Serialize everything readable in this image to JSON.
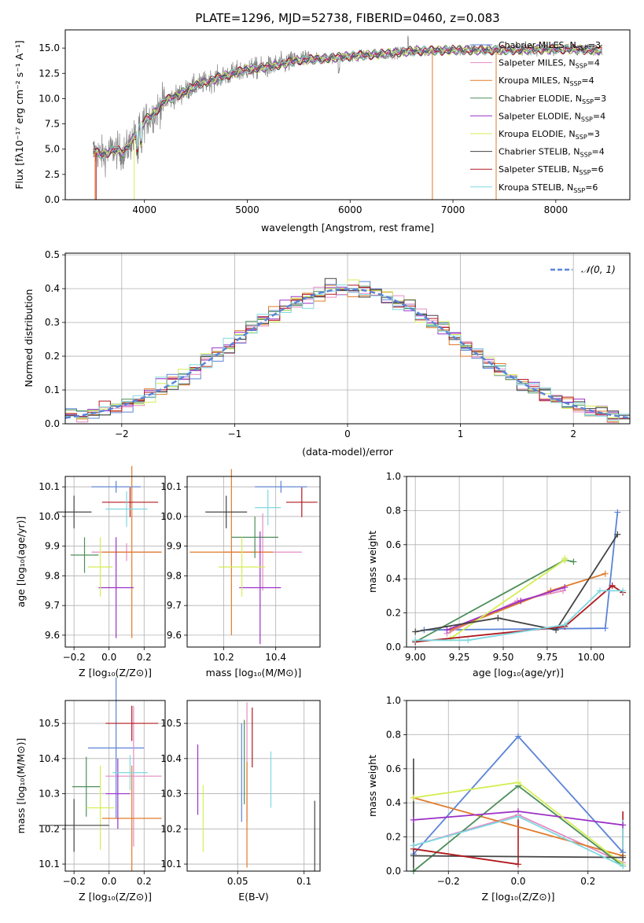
{
  "chart_data": [
    {
      "type": "line",
      "id": "spectrum",
      "title": "PLATE=1296, MJD=52738, FIBERID=0460, z=0.083",
      "xlabel": "wavelength [Angstrom, rest frame]",
      "ylabel": "Flux [fλ10⁻¹⁷ erg cm⁻² s⁻¹ A⁻¹]",
      "xlim": [
        3230,
        8720
      ],
      "ylim": [
        0,
        16.8
      ],
      "xticks": [
        4000,
        5000,
        6000,
        7000,
        8000
      ],
      "yticks": [
        0.0,
        2.5,
        5.0,
        7.5,
        10.0,
        12.5,
        15.0
      ],
      "legend_position": "right",
      "continuum": {
        "x": [
          3500,
          3600,
          3700,
          3800,
          3900,
          4000,
          4100,
          4200,
          4300,
          4500,
          4700,
          5000,
          5200,
          5500,
          5800,
          6000,
          6300,
          6600,
          7000,
          7500,
          8000,
          8500
        ],
        "y": [
          4.8,
          4.4,
          5.0,
          4.6,
          6.2,
          7.8,
          8.6,
          9.8,
          10.2,
          11.3,
          12.0,
          12.9,
          13.1,
          13.8,
          14.0,
          14.2,
          14.4,
          14.7,
          14.8,
          14.8,
          14.9,
          14.8
        ]
      },
      "series": [
        {
          "name": "Chabrier MILES, N_SSP=3",
          "label_text": "Chabrier MILES, N",
          "label_sub": "SSP",
          "label_tail": "=3",
          "color": "#5b84d6"
        },
        {
          "name": "Salpeter MILES, N_SSP=4",
          "label_text": "Salpeter MILES, N",
          "label_sub": "SSP",
          "label_tail": "=4",
          "color": "#e38cc4"
        },
        {
          "name": "Kroupa MILES, N_SSP=4",
          "label_text": "Kroupa MILES, N",
          "label_sub": "SSP",
          "label_tail": "=4",
          "color": "#e07b2a"
        },
        {
          "name": "Chabrier ELODIE, N_SSP=3",
          "label_text": "Chabrier ELODIE, N",
          "label_sub": "SSP",
          "label_tail": "=3",
          "color": "#4d8f5a"
        },
        {
          "name": "Salpeter ELODIE, N_SSP=4",
          "label_text": "Salpeter ELODIE, N",
          "label_sub": "SSP",
          "label_tail": "=4",
          "color": "#9b30c6"
        },
        {
          "name": "Kroupa ELODIE, N_SSP=3",
          "label_text": "Kroupa ELODIE, N",
          "label_sub": "SSP",
          "label_tail": "=3",
          "color": "#d4ee55"
        },
        {
          "name": "Chabrier STELIB, N_SSP=4",
          "label_text": "Chabrier STELIB, N",
          "label_sub": "SSP",
          "label_tail": "=4",
          "color": "#444444"
        },
        {
          "name": "Salpeter STELIB, N_SSP=6",
          "label_text": "Salpeter STELIB, N",
          "label_sub": "SSP",
          "label_tail": "=6",
          "color": "#b0191e"
        },
        {
          "name": "Kroupa STELIB, N_SSP=6",
          "label_text": "Kroupa STELIB, N",
          "label_sub": "SSP",
          "label_tail": "=6",
          "color": "#7fd8e0"
        }
      ],
      "data_color": "#808080"
    },
    {
      "type": "bar",
      "id": "residuals",
      "xlabel": "(data-model)/error",
      "ylabel": "Normed distribution",
      "xlim": [
        -2.5,
        2.5
      ],
      "ylim": [
        0,
        0.505
      ],
      "xticks": [
        -2,
        -1,
        0,
        1,
        2
      ],
      "yticks": [
        0.0,
        0.1,
        0.2,
        0.3,
        0.4,
        0.5
      ],
      "grid": true,
      "legend_position": "top-right",
      "legend_label": "𝒩(0, 1)",
      "normal_color": "#5b84d6",
      "bin_width": 0.1
    },
    {
      "type": "scatter",
      "id": "age-vs-Z",
      "xlabel": "Z [log₁₀(Z/Z⊙)]",
      "ylabel": "age  [log₁₀(age/yr)]",
      "xlim": [
        -0.25,
        0.32
      ],
      "ylim": [
        9.56,
        10.135
      ],
      "xticks": [
        -0.2,
        0.0,
        0.2
      ],
      "yticks": [
        9.6,
        9.7,
        9.8,
        9.9,
        10.0,
        10.1
      ],
      "grid": true,
      "points": [
        {
          "x": 0.04,
          "y": 10.1,
          "xerr": 0.14,
          "yerr": 0.02,
          "color": "#5b84d6"
        },
        {
          "x": 0.1,
          "y": 9.88,
          "xerr": 0.2,
          "yerr": 0.03,
          "color": "#e38cc4"
        },
        {
          "x": 0.13,
          "y": 9.88,
          "xerr": 0.17,
          "yerr": 0.29,
          "color": "#e07b2a"
        },
        {
          "x": -0.14,
          "y": 9.87,
          "xerr": 0.08,
          "yerr": 0.06,
          "color": "#4d8f5a"
        },
        {
          "x": 0.04,
          "y": 9.76,
          "xerr": 0.1,
          "yerr": 0.17,
          "color": "#9b30c6"
        },
        {
          "x": -0.05,
          "y": 9.83,
          "xerr": 0.07,
          "yerr": 0.1,
          "color": "#d4ee55"
        },
        {
          "x": -0.2,
          "y": 10.015,
          "xerr": 0.1,
          "yerr": 0.055,
          "color": "#444444"
        },
        {
          "x": 0.12,
          "y": 10.048,
          "xerr": 0.16,
          "yerr": 0.05,
          "color": "#b0191e"
        },
        {
          "x": 0.1,
          "y": 10.025,
          "xerr": 0.12,
          "yerr": 0.06,
          "color": "#7fd8e0"
        }
      ]
    },
    {
      "type": "scatter",
      "id": "age-vs-mass",
      "xlabel": "mass [log₁₀(M/M⊙)]",
      "ylabel": "",
      "xlim": [
        10.06,
        10.57
      ],
      "ylim": [
        9.56,
        10.135
      ],
      "xticks": [
        10.2,
        10.4
      ],
      "yticks": [
        9.6,
        9.7,
        9.8,
        9.9,
        10.0,
        10.1
      ],
      "grid": true,
      "points": [
        {
          "x": 10.42,
          "y": 10.1,
          "xerr": 0.1,
          "yerr": 0.02,
          "color": "#5b84d6"
        },
        {
          "x": 10.35,
          "y": 9.88,
          "xerr": 0.15,
          "yerr": 0.13,
          "color": "#e38cc4"
        },
        {
          "x": 10.23,
          "y": 9.88,
          "xerr": 0.16,
          "yerr": 0.28,
          "color": "#e07b2a"
        },
        {
          "x": 10.32,
          "y": 9.93,
          "xerr": 0.09,
          "yerr": 0.07,
          "color": "#4d8f5a"
        },
        {
          "x": 10.34,
          "y": 9.76,
          "xerr": 0.08,
          "yerr": 0.19,
          "color": "#9b30c6"
        },
        {
          "x": 10.27,
          "y": 9.83,
          "xerr": 0.09,
          "yerr": 0.1,
          "color": "#d4ee55"
        },
        {
          "x": 10.21,
          "y": 10.015,
          "xerr": 0.08,
          "yerr": 0.055,
          "color": "#444444"
        },
        {
          "x": 10.5,
          "y": 10.048,
          "xerr": 0.06,
          "yerr": 0.05,
          "color": "#b0191e"
        },
        {
          "x": 10.37,
          "y": 10.03,
          "xerr": 0.05,
          "yerr": 0.06,
          "color": "#7fd8e0"
        }
      ]
    },
    {
      "type": "line",
      "id": "mass-weight-vs-age",
      "xlabel": "age  [log₁₀(age/yr)]",
      "ylabel": "mass weight",
      "xlim": [
        8.95,
        10.22
      ],
      "ylim": [
        0,
        1.0
      ],
      "xticks": [
        9.0,
        9.25,
        9.5,
        9.75,
        10.0
      ],
      "xtick_labels": [
        "9.00",
        "9.25",
        "9.50",
        "9.75",
        "10.00"
      ],
      "yticks": [
        0.0,
        0.2,
        0.4,
        0.6,
        0.8,
        1.0
      ],
      "grid": true,
      "series": [
        {
          "color": "#5b84d6",
          "x": [
            9.05,
            10.08,
            10.15
          ],
          "y": [
            0.1,
            0.11,
            0.79
          ]
        },
        {
          "color": "#e38cc4",
          "x": [
            9.18,
            9.58,
            9.84
          ],
          "y": [
            0.08,
            0.27,
            0.33
          ]
        },
        {
          "color": "#e07b2a",
          "x": [
            9.2,
            9.77,
            10.08
          ],
          "y": [
            0.1,
            0.33,
            0.43
          ]
        },
        {
          "color": "#4d8f5a",
          "x": [
            9.0,
            9.85,
            9.9
          ],
          "y": [
            0.03,
            0.51,
            0.5
          ]
        },
        {
          "color": "#9b30c6",
          "x": [
            9.18,
            9.6,
            9.85
          ],
          "y": [
            0.1,
            0.27,
            0.35
          ]
        },
        {
          "color": "#d4ee55",
          "x": [
            9.2,
            9.85,
            9.85
          ],
          "y": [
            0.05,
            0.51,
            0.52
          ]
        },
        {
          "color": "#444444",
          "x": [
            9.0,
            9.47,
            9.8,
            10.15
          ],
          "y": [
            0.09,
            0.17,
            0.1,
            0.66
          ]
        },
        {
          "color": "#b0191e",
          "x": [
            9.0,
            9.85,
            10.12,
            10.18
          ],
          "y": [
            0.03,
            0.12,
            0.36,
            0.32
          ]
        },
        {
          "color": "#7fd8e0",
          "x": [
            9.0,
            9.3,
            9.85,
            10.05,
            10.18
          ],
          "y": [
            0.04,
            0.04,
            0.13,
            0.33,
            0.33
          ]
        }
      ]
    },
    {
      "type": "scatter",
      "id": "mass-vs-Z",
      "xlabel": "Z [log₁₀(Z/Z⊙)]",
      "ylabel": "mass [log₁₀(M/M⊙)]",
      "xlim": [
        -0.25,
        0.32
      ],
      "ylim": [
        10.08,
        10.565
      ],
      "xticks": [
        -0.2,
        0.0,
        0.2
      ],
      "yticks": [
        10.1,
        10.2,
        10.3,
        10.4,
        10.5
      ],
      "grid": true,
      "points": [
        {
          "x": 0.04,
          "y": 10.43,
          "xerr": 0.16,
          "yerr": 0.2,
          "color": "#5b84d6"
        },
        {
          "x": 0.14,
          "y": 10.35,
          "xerr": 0.16,
          "yerr": 0.2,
          "color": "#e38cc4"
        },
        {
          "x": 0.13,
          "y": 10.23,
          "xerr": 0.17,
          "yerr": 0.15,
          "color": "#e07b2a"
        },
        {
          "x": -0.13,
          "y": 10.32,
          "xerr": 0.08,
          "yerr": 0.085,
          "color": "#4d8f5a"
        },
        {
          "x": 0.05,
          "y": 10.3,
          "xerr": 0.07,
          "yerr": 0.1,
          "color": "#9b30c6"
        },
        {
          "x": -0.05,
          "y": 10.26,
          "xerr": 0.08,
          "yerr": 0.12,
          "color": "#d4ee55"
        },
        {
          "x": -0.2,
          "y": 10.21,
          "xerr": 0.2,
          "yerr": 0.075,
          "color": "#444444"
        },
        {
          "x": 0.13,
          "y": 10.5,
          "xerr": 0.15,
          "yerr": 0.05,
          "color": "#b0191e"
        },
        {
          "x": 0.12,
          "y": 10.36,
          "xerr": 0.1,
          "yerr": 0.05,
          "color": "#7fd8e0"
        }
      ]
    },
    {
      "type": "scatter",
      "id": "mass-vs-EBV",
      "xlabel": "E(B-V)",
      "ylabel": "",
      "xlim": [
        0.012,
        0.112
      ],
      "ylim": [
        10.08,
        10.565
      ],
      "xticks": [
        0.05,
        0.1
      ],
      "yticks": [
        10.1,
        10.2,
        10.3,
        10.4,
        10.5
      ],
      "grid": true,
      "points": [
        {
          "x": 0.053,
          "y": 10.36,
          "xerr": 0,
          "yerr": 0.14,
          "color": "#5b84d6"
        },
        {
          "x": 0.057,
          "y": 10.39,
          "xerr": 0,
          "yerr": 0.17,
          "color": "#e38cc4"
        },
        {
          "x": 0.057,
          "y": 10.24,
          "xerr": 0,
          "yerr": 0.15,
          "color": "#e07b2a"
        },
        {
          "x": 0.055,
          "y": 10.39,
          "xerr": 0,
          "yerr": 0.12,
          "color": "#4d8f5a"
        },
        {
          "x": 0.02,
          "y": 10.34,
          "xerr": 0,
          "yerr": 0.1,
          "color": "#9b30c6"
        },
        {
          "x": 0.024,
          "y": 10.23,
          "xerr": 0,
          "yerr": 0.095,
          "color": "#d4ee55"
        },
        {
          "x": 0.108,
          "y": 10.18,
          "xerr": 0,
          "yerr": 0.1,
          "color": "#444444"
        },
        {
          "x": 0.061,
          "y": 10.46,
          "xerr": 0,
          "yerr": 0.085,
          "color": "#b0191e"
        },
        {
          "x": 0.075,
          "y": 10.34,
          "xerr": 0,
          "yerr": 0.08,
          "color": "#7fd8e0"
        }
      ]
    },
    {
      "type": "line",
      "id": "mass-weight-vs-Z",
      "xlabel": "Z [log₁₀(Z/Z⊙)]",
      "ylabel": "mass weight",
      "xlim": [
        -0.32,
        0.32
      ],
      "ylim": [
        0,
        1.0
      ],
      "xticks": [
        -0.2,
        0.0,
        0.2
      ],
      "yticks": [
        0.0,
        0.2,
        0.4,
        0.6,
        0.8,
        1.0
      ],
      "grid": true,
      "series": [
        {
          "color": "#5b84d6",
          "x": [
            -0.3,
            0.0,
            0.3
          ],
          "y": [
            0.1,
            0.79,
            0.11
          ]
        },
        {
          "color": "#e38cc4",
          "x": [
            -0.3,
            0.0,
            0.3
          ],
          "y": [
            0.15,
            0.33,
            0.05
          ]
        },
        {
          "color": "#e07b2a",
          "x": [
            -0.3,
            0.3
          ],
          "y": [
            0.43,
            0.09
          ]
        },
        {
          "color": "#4d8f5a",
          "x": [
            -0.3,
            0.0,
            0.3
          ],
          "y": [
            0.0,
            0.5,
            0.03
          ]
        },
        {
          "color": "#9b30c6",
          "x": [
            -0.3,
            0.0,
            0.3
          ],
          "y": [
            0.3,
            0.35,
            0.27
          ]
        },
        {
          "color": "#d4ee55",
          "x": [
            -0.3,
            0.0,
            0.3
          ],
          "y": [
            0.43,
            0.52,
            0.04
          ]
        },
        {
          "color": "#444444",
          "x": [
            -0.3,
            0.3
          ],
          "y": [
            0.09,
            0.08
          ]
        },
        {
          "color": "#b0191e",
          "x": [
            -0.3,
            0.0
          ],
          "y": [
            0.13,
            0.04
          ]
        },
        {
          "color": "#7fd8e0",
          "x": [
            -0.3,
            0.0,
            0.3
          ],
          "y": [
            0.15,
            0.32,
            0.03
          ]
        }
      ],
      "verticals": [
        {
          "x": -0.3,
          "y0": 0.0,
          "y1": 0.66,
          "color": "#444444"
        },
        {
          "x": 0.0,
          "y0": 0.04,
          "y1": 0.32,
          "color": "#b0191e"
        },
        {
          "x": 0.3,
          "y0": 0.03,
          "y1": 0.35,
          "color": "#b0191e"
        },
        {
          "x": 0.3,
          "y0": 0.03,
          "y1": 0.3,
          "color": "#7fd8e0"
        }
      ]
    }
  ]
}
